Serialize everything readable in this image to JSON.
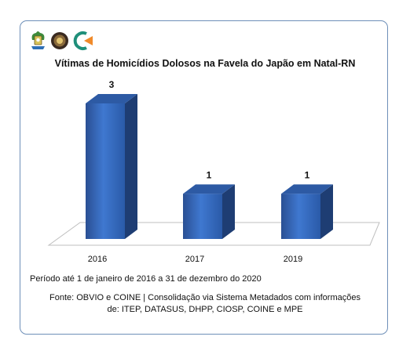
{
  "chart_data": {
    "type": "bar",
    "title": "Vítimas de Homicídios Dolosos na Favela do Japão em Natal-RN",
    "categories": [
      "2016",
      "2017",
      "2019"
    ],
    "values": [
      3,
      1,
      1
    ],
    "data_labels": [
      "3",
      "1",
      "1"
    ],
    "xlabel": "",
    "ylabel": "",
    "ylim": [
      0,
      3
    ],
    "grid": false,
    "legend": "none",
    "bar_color": "#2f5fb0"
  },
  "footer": {
    "period": "Período até 1 de janeiro de 2016 a 31 de dezembro do 2020",
    "source_line1": "Fonte: OBVIO e COINE | Consolidação via Sistema Metadados com informações",
    "source_line2": "de: ITEP, DATASUS, DHPP, CIOSP, COINE e MPE"
  },
  "logos": [
    "state-coat-of-arms-icon",
    "police-badge-icon",
    "obvio-logo-icon"
  ]
}
